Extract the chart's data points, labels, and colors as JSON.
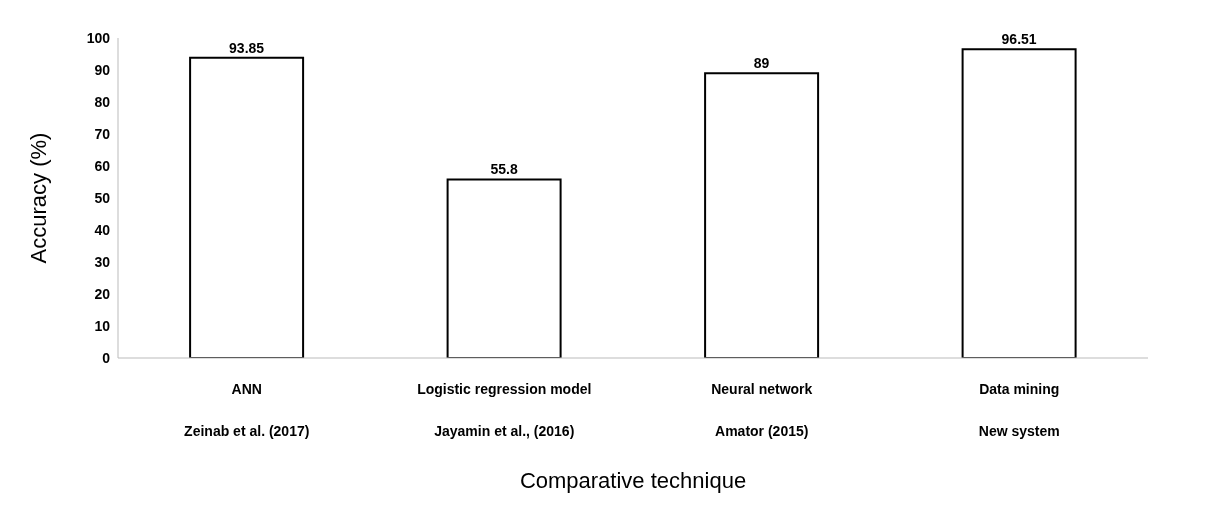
{
  "chart_data": {
    "type": "bar",
    "xlabel": "Comparative technique",
    "ylabel": "Accuracy (%)",
    "categories": [
      "ANN\nZeinab et al. (2017)",
      "Logistic regression model\nJayamin et al., (2016)",
      "Neural network\nAmator (2015)",
      "Data mining\nNew system"
    ],
    "values": [
      93.85,
      55.8,
      89,
      96.51
    ],
    "color": "#ffffff",
    "data_labels": true,
    "ylim": [
      0,
      100
    ],
    "yticks": [
      0,
      10,
      20,
      30,
      40,
      50,
      60,
      70,
      80,
      90,
      100
    ]
  }
}
